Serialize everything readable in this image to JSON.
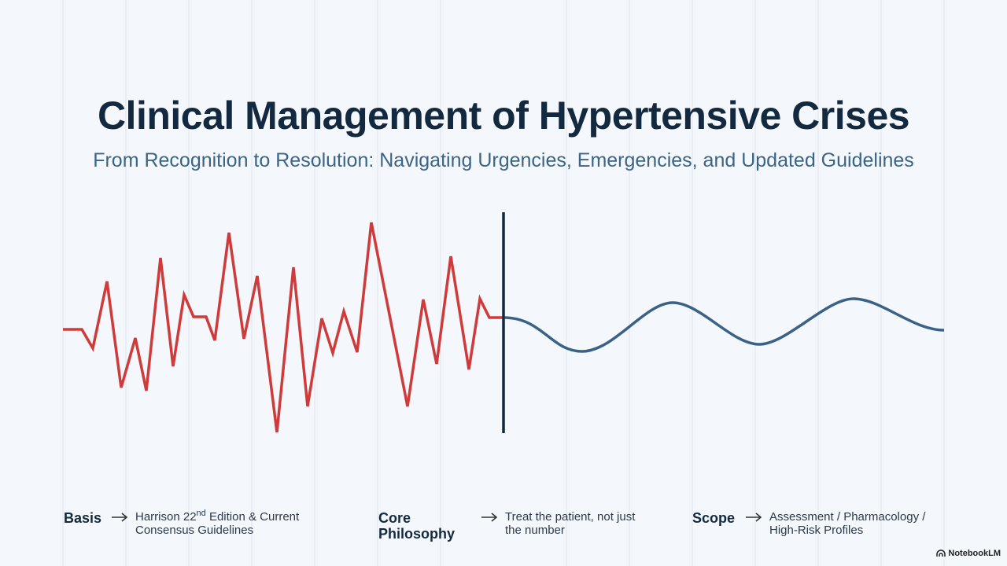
{
  "header": {
    "title": "Clinical Management of Hypertensive Crises",
    "subtitle": "From Recognition to Resolution: Navigating Urgencies, Emergencies, and Updated Guidelines"
  },
  "footer": {
    "items": [
      {
        "label": "Basis",
        "text_parts": [
          "Harrison 22",
          "nd",
          " Edition & Current Consensus Guidelines"
        ]
      },
      {
        "label": "Core Philosophy",
        "text": "Treat the patient, not just the number"
      },
      {
        "label": "Scope",
        "text": "Assessment / Pharmacology / High-Risk Profiles"
      }
    ]
  },
  "brand": "NotebookLM"
}
